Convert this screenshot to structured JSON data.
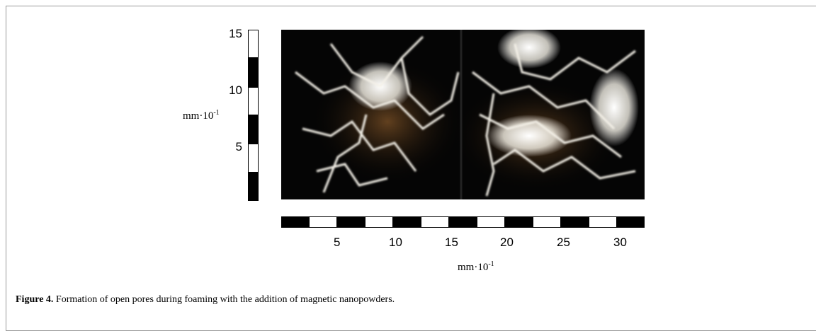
{
  "figure": {
    "y_scale": {
      "labels": [
        "15",
        "10",
        "5"
      ],
      "unit_base": "mm·10",
      "unit_exponent": "-1"
    },
    "x_scale": {
      "labels": [
        "5",
        "10",
        "15",
        "20",
        "25",
        "30"
      ],
      "unit_base": "mm·10",
      "unit_exponent": "-1"
    },
    "caption": {
      "label": "Figure 4.",
      "text": "Formation of open pores during foaming with the addition of magnetic nanopowders."
    }
  }
}
